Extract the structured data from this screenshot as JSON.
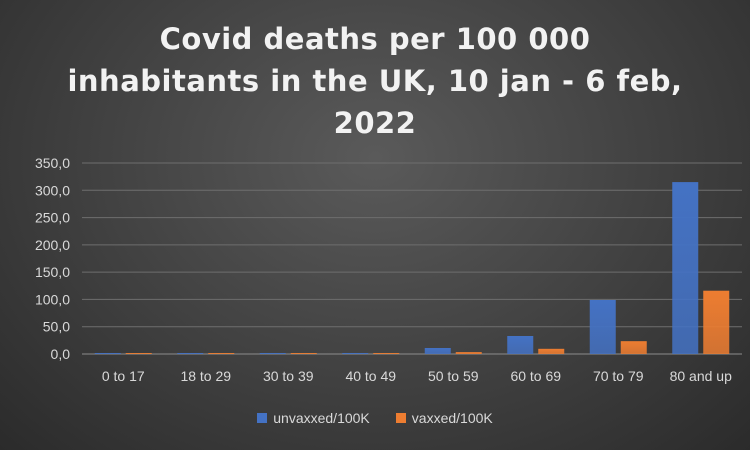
{
  "title_lines": [
    "Covid deaths per 100 000",
    "inhabitants in the UK, 10 jan - 6 feb,",
    "2022"
  ],
  "chart_data": {
    "type": "bar",
    "title": "Covid deaths per 100 000 inhabitants in the UK, 10 jan - 6 feb, 2022",
    "categories": [
      "0 to 17",
      "18 to 29",
      "30 to 39",
      "40 to 49",
      "50 to 59",
      "60 to 69",
      "70 to 79",
      "80 and up"
    ],
    "series": [
      {
        "name": "unvaxxed/100K",
        "color": "#4472c4",
        "values": [
          0.3,
          0.5,
          0.8,
          1.5,
          11.0,
          33.0,
          99.0,
          315.0
        ]
      },
      {
        "name": "vaxxed/100K",
        "color": "#ed7d31",
        "values": [
          0.2,
          0.3,
          0.4,
          1.0,
          3.5,
          9.5,
          23.5,
          116.0
        ]
      }
    ],
    "ylim": [
      0,
      350
    ],
    "yticks": [
      "0,0",
      "50,0",
      "100,0",
      "150,0",
      "200,0",
      "250,0",
      "300,0",
      "350,0"
    ],
    "grid": true,
    "legend_position": "bottom"
  }
}
